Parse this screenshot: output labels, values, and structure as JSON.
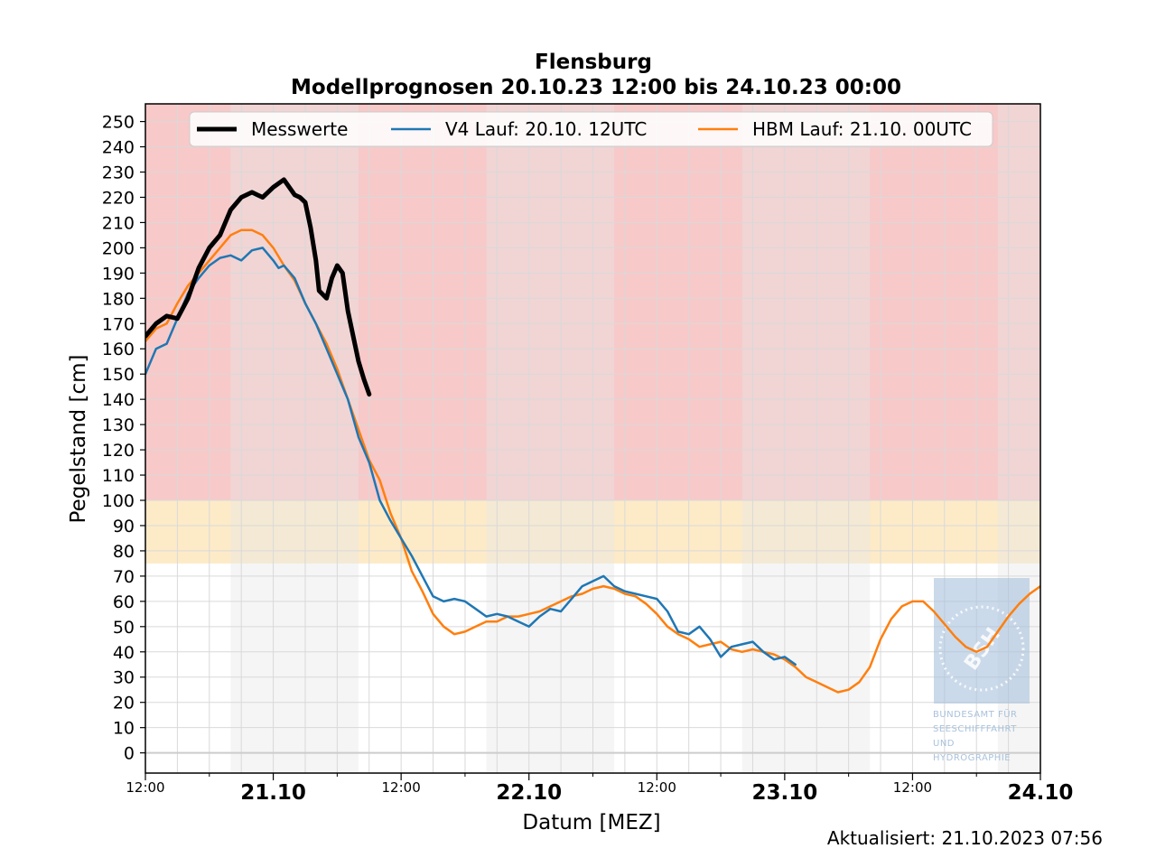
{
  "chart_data": {
    "type": "line",
    "title": "Flensburg",
    "subtitle": "Modellprognosen 20.10.23 12:00 bis 24.10.23 00:00",
    "xlabel": "Datum [MEZ]",
    "ylabel": "Pegelstand [cm]",
    "xlim": [
      0,
      84
    ],
    "ylim": [
      -8,
      257
    ],
    "y_ticks": [
      0,
      10,
      20,
      30,
      40,
      50,
      60,
      70,
      80,
      90,
      100,
      110,
      120,
      130,
      140,
      150,
      160,
      170,
      180,
      190,
      200,
      210,
      220,
      230,
      240,
      250
    ],
    "x_ticks": [
      {
        "x": 0,
        "label": "12:00",
        "major": false
      },
      {
        "x": 12,
        "label": "21.10",
        "major": true
      },
      {
        "x": 24,
        "label": "12:00",
        "major": false
      },
      {
        "x": 36,
        "label": "22.10",
        "major": true
      },
      {
        "x": 48,
        "label": "12:00",
        "major": false
      },
      {
        "x": 60,
        "label": "23.10",
        "major": true
      },
      {
        "x": 72,
        "label": "12:00",
        "major": false
      },
      {
        "x": 84,
        "label": "24.10",
        "major": true
      }
    ],
    "x_minor_ticks": [
      6,
      18,
      30,
      42,
      54,
      66,
      78
    ],
    "grid": true,
    "x_unit_note": "hours since 20.10.23 12:00",
    "warning_bands": [
      {
        "from": 100,
        "to": 257,
        "color": "#f8c9c9"
      },
      {
        "from": 75,
        "to": 100,
        "color": "#fdebc8"
      }
    ],
    "night_bands": [
      [
        8,
        20
      ],
      [
        32,
        44
      ],
      [
        56,
        68
      ],
      [
        80,
        84
      ]
    ],
    "legend_position": "top-center",
    "series": [
      {
        "name": "Messwerte",
        "color": "#000000",
        "width": 5,
        "x": [
          0,
          1,
          2,
          3,
          4,
          5,
          6,
          7,
          8,
          9,
          10,
          10.5,
          11,
          11.5,
          12,
          13,
          13.5,
          14,
          14.5,
          15,
          15.5,
          16,
          16.3,
          17,
          17.5,
          18,
          18.5,
          19,
          19.5,
          20,
          20.5,
          21,
          21.5,
          22,
          22.5,
          23,
          23.5
        ],
        "y": [
          165,
          170,
          173,
          172,
          180,
          192,
          200,
          205,
          215,
          220,
          222,
          221,
          220,
          222,
          224,
          227,
          224,
          221,
          220,
          218,
          208,
          195,
          183,
          180,
          188,
          193,
          190,
          175,
          165,
          155,
          148,
          142,
          null,
          null,
          null,
          null,
          null
        ]
      },
      {
        "name": "V4 Lauf: 20.10. 12UTC",
        "color": "#1f77b4",
        "width": 2.5,
        "x": [
          0,
          1,
          2,
          3,
          4,
          5,
          6,
          7,
          8,
          9,
          10,
          11,
          12,
          12.5,
          13,
          14,
          15,
          16,
          17,
          18,
          19,
          20,
          21,
          22,
          23,
          24,
          25,
          26,
          27,
          28,
          29,
          30,
          31,
          32,
          33,
          34,
          35,
          36,
          37,
          38,
          39,
          40,
          41,
          42,
          43,
          44,
          45,
          46,
          47,
          48,
          49,
          50,
          51,
          52,
          53,
          54,
          55,
          56,
          57,
          58,
          59,
          60,
          61
        ],
        "y": [
          150,
          160,
          162,
          172,
          182,
          188,
          193,
          196,
          197,
          195,
          199,
          200,
          195,
          192,
          193,
          188,
          178,
          170,
          160,
          150,
          140,
          125,
          115,
          100,
          92,
          85,
          78,
          70,
          62,
          60,
          61,
          60,
          57,
          54,
          55,
          54,
          52,
          50,
          54,
          57,
          56,
          61,
          66,
          68,
          70,
          66,
          64,
          63,
          62,
          61,
          56,
          48,
          47,
          50,
          45,
          38,
          42,
          43,
          44,
          40,
          37,
          38,
          35
        ]
      },
      {
        "name": "HBM Lauf: 21.10. 00UTC",
        "color": "#ff7f0e",
        "width": 2.5,
        "x": [
          0,
          1,
          2,
          3,
          4,
          5,
          6,
          7,
          8,
          9,
          10,
          11,
          12,
          13,
          14,
          15,
          16,
          17,
          18,
          19,
          20,
          21,
          22,
          23,
          24,
          25,
          26,
          27,
          28,
          29,
          30,
          31,
          32,
          33,
          34,
          35,
          36,
          37,
          38,
          39,
          40,
          41,
          42,
          43,
          44,
          45,
          46,
          47,
          48,
          49,
          50,
          51,
          52,
          53,
          54,
          55,
          56,
          57,
          58,
          59,
          60,
          61,
          62,
          63,
          64,
          65,
          66,
          67,
          68,
          69,
          70,
          71,
          72,
          73,
          74,
          75,
          76,
          77,
          78,
          79,
          80,
          81,
          82,
          83,
          84
        ],
        "y": [
          163,
          168,
          170,
          178,
          185,
          190,
          195,
          200,
          205,
          207,
          207,
          205,
          200,
          193,
          187,
          178,
          170,
          162,
          152,
          140,
          128,
          116,
          108,
          95,
          85,
          72,
          64,
          55,
          50,
          47,
          48,
          50,
          52,
          52,
          54,
          54,
          55,
          56,
          58,
          60,
          62,
          63,
          65,
          66,
          65,
          63,
          62,
          59,
          55,
          50,
          47,
          45,
          42,
          43,
          44,
          41,
          40,
          41,
          40,
          39,
          37,
          34,
          30,
          28,
          26,
          24,
          25,
          28,
          34,
          45,
          53,
          58,
          60,
          60,
          56,
          51,
          46,
          42,
          40,
          42,
          48,
          54,
          59,
          63,
          66
        ]
      }
    ]
  },
  "footer": {
    "updated": "Aktualisiert: 21.10.2023 07:56"
  },
  "logo": {
    "abbr": "BSH",
    "lines": [
      "BUNDESAMT FÜR",
      "SEESCHIFFFAHRT",
      "UND",
      "HYDROGRAPHIE"
    ]
  },
  "colors": {
    "grid": "#d9d9d9",
    "night_band": "#e6e6e6",
    "axis": "#000000",
    "logo": "#a8c2dc"
  }
}
